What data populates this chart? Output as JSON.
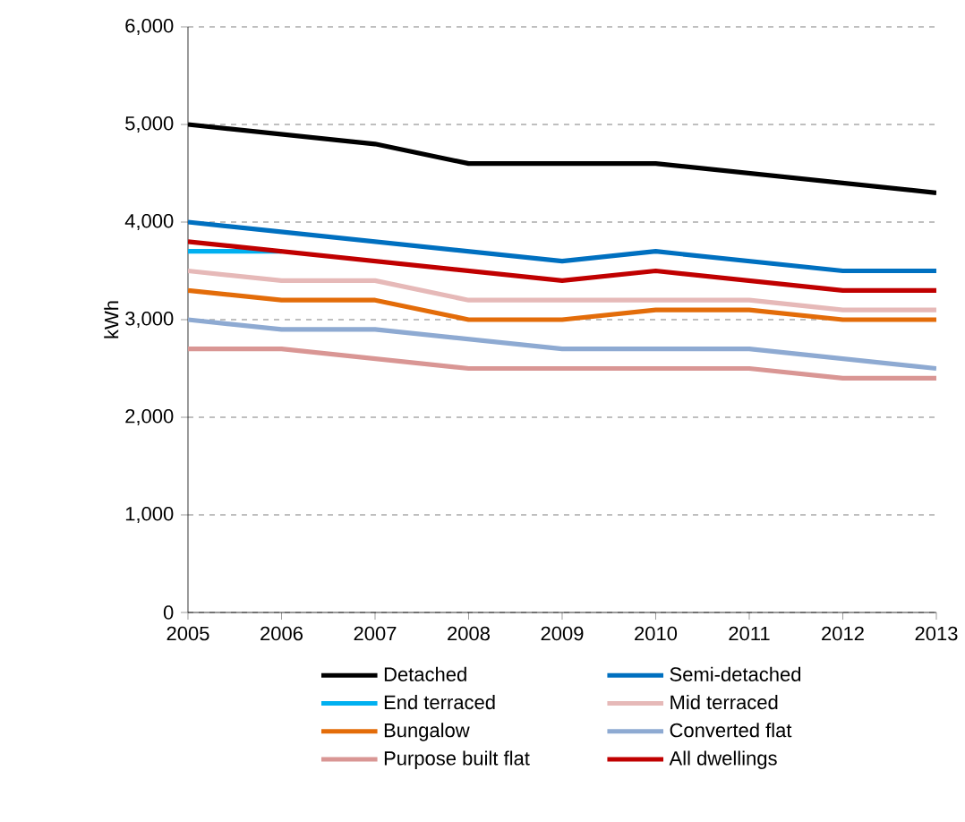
{
  "chart_data": {
    "type": "line",
    "ylabel": "kWh",
    "x": [
      2005,
      2006,
      2007,
      2008,
      2009,
      2010,
      2011,
      2012,
      2013
    ],
    "xlim": [
      2005,
      2013
    ],
    "xticks": [
      2005,
      2006,
      2007,
      2008,
      2009,
      2010,
      2011,
      2012,
      2013
    ],
    "ylim": [
      0,
      6000
    ],
    "yticks": [
      0,
      {
        "value": 1000,
        "label": "1,000"
      },
      {
        "value": 2000,
        "label": "2,000"
      },
      {
        "value": 3000,
        "label": "3,000"
      },
      {
        "value": 4000,
        "label": "4,000"
      },
      {
        "value": 5000,
        "label": "5,000"
      },
      {
        "value": 6000,
        "label": "6,000"
      }
    ],
    "grid": "y",
    "legend": "bottom",
    "marker": "none",
    "line_style": "solid",
    "series": [
      {
        "name": "Detached",
        "color": "#000000",
        "values": [
          5000,
          4900,
          4800,
          4600,
          4600,
          4600,
          4500,
          4400,
          4300
        ]
      },
      {
        "name": "Semi-detached",
        "color": "#0070c0",
        "values": [
          4000,
          3900,
          3800,
          3700,
          3600,
          3700,
          3600,
          3500,
          3500
        ]
      },
      {
        "name": "End terraced",
        "color": "#00b0f0",
        "values": [
          3700,
          3700,
          null,
          null,
          null,
          null,
          null,
          null,
          null
        ]
      },
      {
        "name": "Mid terraced",
        "color": "#e6b9b8",
        "values": [
          3500,
          3400,
          3400,
          3200,
          3200,
          3200,
          3200,
          3100,
          3100
        ]
      },
      {
        "name": "Bungalow",
        "color": "#e36c09",
        "values": [
          3300,
          3200,
          3200,
          3000,
          3000,
          3100,
          3100,
          3000,
          3000
        ]
      },
      {
        "name": "Converted flat",
        "color": "#8eaad2",
        "values": [
          3000,
          2900,
          2900,
          2800,
          2700,
          2700,
          2700,
          2600,
          2500
        ]
      },
      {
        "name": "Purpose built flat",
        "color": "#d99694",
        "values": [
          2700,
          2700,
          2600,
          2500,
          2500,
          2500,
          2500,
          2400,
          2400
        ]
      },
      {
        "name": "All dwellings",
        "color": "#c00000",
        "values": [
          3800,
          3700,
          3600,
          3500,
          3400,
          3500,
          3400,
          3300,
          3300
        ]
      }
    ]
  }
}
